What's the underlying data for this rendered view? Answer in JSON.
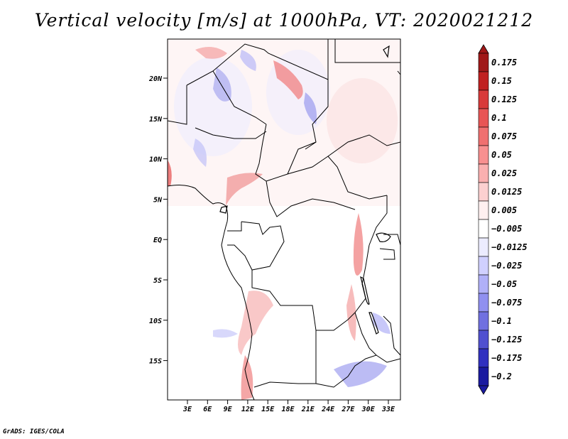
{
  "title": "Vertical velocity [m/s] at 1000hPa, VT: 2020021212",
  "footer": "GrADS: IGES/COLA",
  "map": {
    "region": "Central Africa",
    "lat_labels": [
      "20N",
      "15N",
      "10N",
      "5N",
      "EQ",
      "5S",
      "10S",
      "15S"
    ],
    "lon_labels": [
      "3E",
      "6E",
      "9E",
      "12E",
      "15E",
      "18E",
      "21E",
      "24E",
      "27E",
      "30E",
      "33E"
    ]
  },
  "colorbar": {
    "labels": [
      "0.175",
      "0.15",
      "0.125",
      "0.1",
      "0.075",
      "0.05",
      "0.025",
      "0.0125",
      "0.005",
      "−0.005",
      "−0.0125",
      "−0.025",
      "−0.05",
      "−0.075",
      "−0.1",
      "−0.125",
      "−0.175",
      "−0.2"
    ],
    "colors": [
      "#a01818",
      "#c02020",
      "#d83a3a",
      "#e85555",
      "#f07070",
      "#f89090",
      "#fab0b0",
      "#fcd0d0",
      "#fff0f0",
      "#ffffff",
      "#ececff",
      "#d0d0ff",
      "#b0b0f8",
      "#9090f0",
      "#7070e0",
      "#5050d0",
      "#3030c0",
      "#1a1aa0"
    ]
  }
}
